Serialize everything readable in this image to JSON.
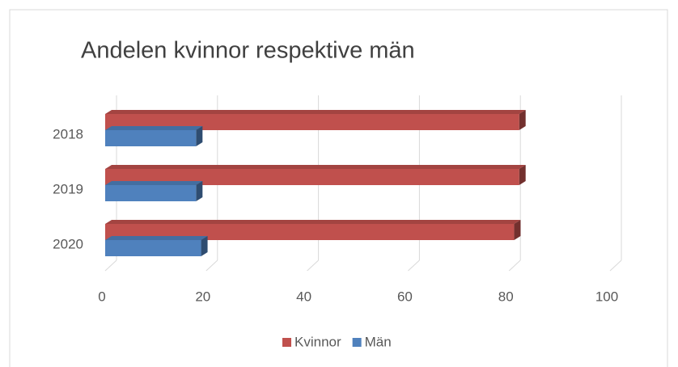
{
  "chart_data": {
    "type": "bar3d_horizontal",
    "title": "Andelen kvinnor respektive män",
    "categories": [
      "2018",
      "2019",
      "2020"
    ],
    "series": [
      {
        "name": "Kvinnor",
        "color": "#c0504d",
        "values": [
          82,
          82,
          81
        ]
      },
      {
        "name": "Män",
        "color": "#4f81bd",
        "values": [
          18,
          18,
          19
        ]
      }
    ],
    "xlim": [
      0,
      100
    ],
    "xticks": [
      0,
      20,
      40,
      60,
      80,
      100
    ],
    "grid": true,
    "legend": "bottom"
  }
}
